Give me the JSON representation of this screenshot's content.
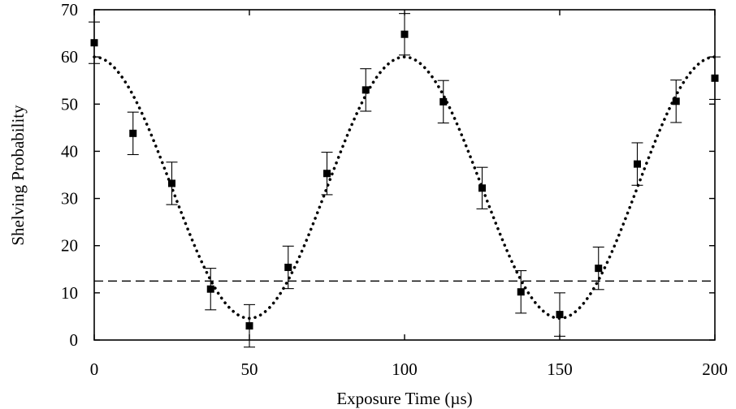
{
  "chart_data": {
    "type": "scatter",
    "xlabel": "Exposure Time (µs)",
    "ylabel": "Shelving Probability",
    "xlim": [
      0,
      200
    ],
    "ylim": [
      0,
      70
    ],
    "x_ticks": [
      "0",
      "50",
      "100",
      "150",
      "200"
    ],
    "y_ticks": [
      "0",
      "10",
      "20",
      "30",
      "40",
      "50",
      "60",
      "70"
    ],
    "grid": false,
    "legend": "none",
    "series": [
      {
        "kind": "points_with_error_bars",
        "x": [
          0,
          12.5,
          25,
          37.5,
          50,
          62.5,
          75,
          87.5,
          100,
          112.5,
          125,
          137.5,
          150,
          162.5,
          175,
          187.5,
          200
        ],
        "y": [
          63,
          43.8,
          33.2,
          10.8,
          3,
          15.4,
          35.3,
          53,
          64.8,
          50.5,
          32.2,
          10.2,
          5.4,
          15.2,
          37.3,
          50.6,
          55.5
        ],
        "err": [
          4.4,
          4.5,
          4.5,
          4.4,
          4.5,
          4.5,
          4.5,
          4.5,
          4.4,
          4.5,
          4.4,
          4.5,
          4.6,
          4.5,
          4.5,
          4.5,
          4.5
        ]
      },
      {
        "kind": "fit_curve",
        "style": "dotted",
        "function": "cosine",
        "offset": 32.3,
        "amplitude": 27.7,
        "period": 100
      },
      {
        "kind": "horizontal_line",
        "style": "dashed",
        "y": 12.5
      }
    ]
  }
}
